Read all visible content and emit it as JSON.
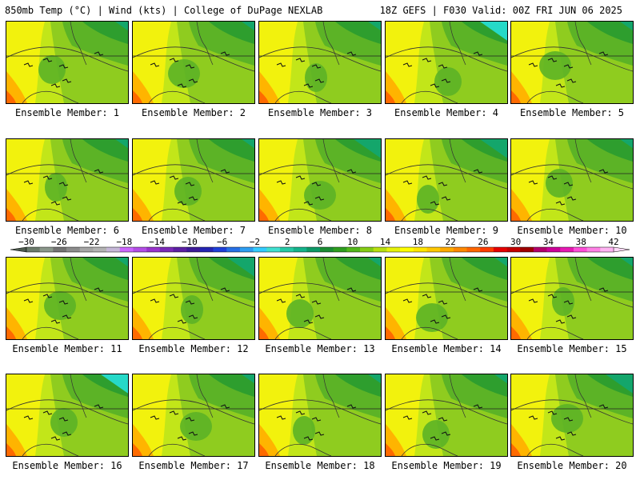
{
  "header": {
    "title": "850mb Temp (°C) | Wind (kts) | College of DuPage NEXLAB",
    "run_info": "18Z GEFS | F030 Valid: 00Z FRI JUN 06 2025"
  },
  "member_label": "Ensemble Member: ",
  "members": [
    1,
    2,
    3,
    4,
    5,
    6,
    7,
    8,
    9,
    10,
    11,
    12,
    13,
    14,
    15,
    16,
    17,
    18,
    19,
    20
  ],
  "colorbar": {
    "ticks": [
      -30,
      -26,
      -22,
      -18,
      -14,
      -10,
      -6,
      -2,
      2,
      6,
      10,
      14,
      18,
      22,
      26,
      30,
      34,
      38,
      42
    ],
    "colors": [
      "#6b7a6b",
      "#8a978a",
      "#737373",
      "#8c8c8c",
      "#a6a6a6",
      "#b3b3b3",
      "#c6b8d8",
      "#cc66ff",
      "#b34de6",
      "#9933cc",
      "#7a29b8",
      "#5c1fa3",
      "#3d1a99",
      "#2424b3",
      "#1f3fd9",
      "#2670e6",
      "#2e9ef2",
      "#33ccff",
      "#40e0d0",
      "#26c9a6",
      "#14b38a",
      "#0d9966",
      "#1a8c33",
      "#2e9e1f",
      "#52b81a",
      "#85cc14",
      "#b8e00f",
      "#e6f20a",
      "#ffff00",
      "#ffe600",
      "#ffc800",
      "#ffaa00",
      "#ff8800",
      "#ff6600",
      "#ff3c00",
      "#e60000",
      "#c40000",
      "#9e0000",
      "#b3006b",
      "#cc0099",
      "#e619b3",
      "#ff4dd9",
      "#ff80e6",
      "#ffb3f2"
    ]
  },
  "palette": {
    "yellow": "#f2f20d",
    "yellow_green": "#c2e619",
    "light_green": "#8fcc1f",
    "mid_green": "#5cb326",
    "dark_green": "#2e9e2e",
    "teal_green": "#14a66b",
    "cyan": "#26d9c8",
    "orange": "#ffb400",
    "red_orange": "#ff6a00"
  }
}
